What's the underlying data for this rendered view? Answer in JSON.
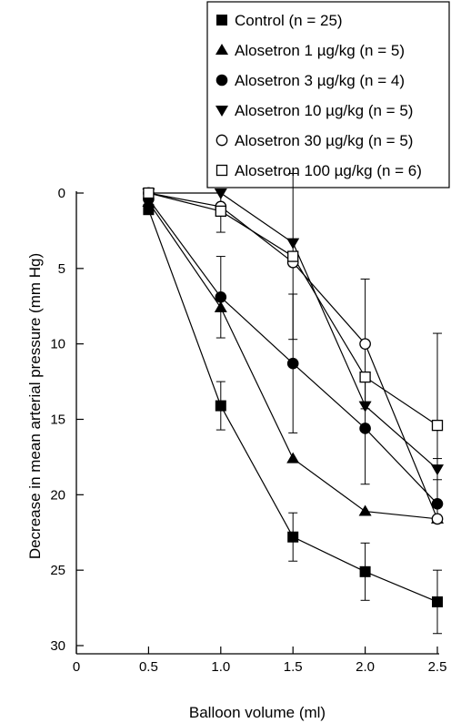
{
  "chart_data": {
    "type": "line",
    "title": "",
    "xlabel": "Balloon volume (ml)",
    "ylabel": "Decrease in mean arterial pressure (mm Hg)",
    "xlim": [
      0,
      2.5
    ],
    "ylim": [
      0,
      30
    ],
    "y_inverted": true,
    "grid": false,
    "legend_position": "top-right",
    "x_ticks": [
      0,
      0.5,
      1.0,
      1.5,
      2.0,
      2.5
    ],
    "x_tick_labels": [
      "0",
      "0.5",
      "1.0",
      "1.5",
      "2.0",
      "2.5"
    ],
    "y_ticks": [
      0,
      5,
      10,
      15,
      20,
      25,
      30
    ],
    "y_tick_labels": [
      "0",
      "5",
      "10",
      "15",
      "20",
      "25",
      "30"
    ],
    "x": [
      0.5,
      1.0,
      1.5,
      2.0,
      2.5
    ],
    "series": [
      {
        "name": "Control (n = 25)",
        "marker": "square-filled",
        "values": [
          1.1,
          14.1,
          22.8,
          25.1,
          27.1
        ],
        "error_bars": [
          null,
          1.6,
          1.6,
          1.9,
          2.1
        ]
      },
      {
        "name": "Alosetron 1 µg/kg (n = 5)",
        "marker": "triangle-up-filled",
        "values": [
          0.6,
          7.6,
          17.6,
          21.1,
          21.6
        ],
        "error_bars": [
          null,
          null,
          null,
          null,
          null
        ]
      },
      {
        "name": "Alosetron 3 µg/kg (n = 4)",
        "marker": "circle-filled",
        "values": [
          0.4,
          6.9,
          11.3,
          15.6,
          20.6
        ],
        "error_bars": [
          null,
          2.7,
          4.6,
          3.7,
          null
        ]
      },
      {
        "name": "Alosetron 10 µg/kg (n = 5)",
        "marker": "triangle-down-filled",
        "values": [
          0.0,
          0.0,
          3.3,
          14.1,
          18.3
        ],
        "error_bars": [
          null,
          null,
          null,
          null,
          0.7
        ]
      },
      {
        "name": "Alosetron 30 µg/kg (n = 5)",
        "marker": "circle-open",
        "values": [
          0.0,
          0.9,
          4.6,
          10.0,
          21.6
        ],
        "error_bars": [
          null,
          null,
          null,
          4.3,
          null
        ]
      },
      {
        "name": "Alosetron 100 µg/kg (n = 6)",
        "marker": "square-open",
        "values": [
          0.0,
          1.2,
          4.2,
          12.2,
          15.4
        ],
        "error_bars": [
          null,
          1.4,
          5.5,
          null,
          6.1
        ]
      }
    ]
  }
}
